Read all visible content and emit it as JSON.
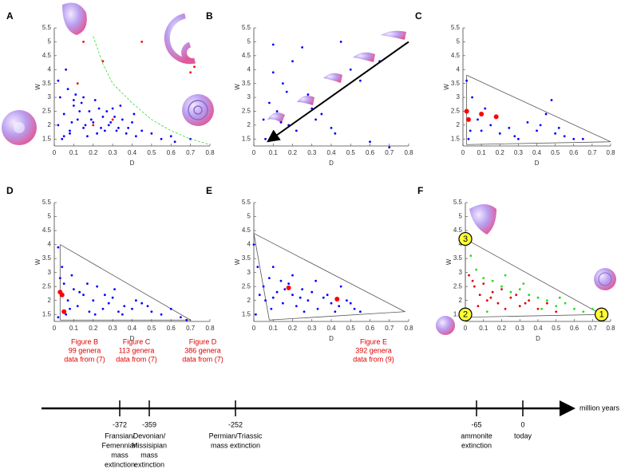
{
  "chart_data": [
    {
      "type": "scatter",
      "title": "A",
      "xlabel": "D",
      "ylabel": "W",
      "xlim": [
        0,
        0.8
      ],
      "ylim": [
        1.25,
        5.5
      ],
      "xticks": [
        0,
        0.1,
        0.2,
        0.3,
        0.4,
        0.5,
        0.6,
        0.7,
        0.8
      ],
      "yticks": [
        1.5,
        2,
        2.5,
        3,
        3.5,
        4,
        4.5,
        5,
        5.5
      ],
      "series": [
        {
          "mode": "markers",
          "color": "#0000ff",
          "x": [
            0.02,
            0.05,
            0.08,
            0.1,
            0.12,
            0.15,
            0.18,
            0.2,
            0.22,
            0.25,
            0.28,
            0.3,
            0.32,
            0.35,
            0.38,
            0.4,
            0.42,
            0.45,
            0.5,
            0.55,
            0.6,
            0.03,
            0.07,
            0.1,
            0.14,
            0.17,
            0.21,
            0.24,
            0.27,
            0.31,
            0.34,
            0.37,
            0.41,
            0.05,
            0.09,
            0.13,
            0.16,
            0.19,
            0.23,
            0.26,
            0.29,
            0.33,
            0.02,
            0.06,
            0.11,
            0.04,
            0.08,
            0.62,
            0.7,
            0.15
          ],
          "values": [
            2.0,
            2.4,
            1.8,
            2.7,
            2.2,
            1.9,
            2.5,
            2.1,
            1.7,
            2.3,
            2.0,
            2.6,
            1.8,
            2.2,
            1.9,
            2.1,
            1.6,
            1.8,
            1.7,
            1.5,
            1.6,
            3.0,
            3.3,
            2.9,
            2.8,
            1.6,
            2.9,
            1.9,
            2.5,
            2.3,
            2.7,
            1.7,
            2.4,
            1.6,
            2.1,
            2.5,
            2.0,
            2.2,
            2.6,
            1.8,
            2.1,
            1.9,
            3.6,
            4.0,
            3.1,
            1.5,
            1.7,
            1.4,
            1.5,
            3.0
          ]
        },
        {
          "mode": "markers",
          "color": "#ff0000",
          "x": [
            0.15,
            0.45,
            0.7,
            0.72,
            0.25,
            0.12,
            0.3,
            0.2
          ],
          "values": [
            5.0,
            5.0,
            3.9,
            4.1,
            4.3,
            3.5,
            2.2,
            2.0
          ]
        },
        {
          "mode": "dashed",
          "color": "#33dd33",
          "x": [
            0.2,
            0.25,
            0.3,
            0.4,
            0.5,
            0.6,
            0.7,
            0.8
          ],
          "values": [
            5.2,
            4.2,
            3.5,
            2.8,
            2.2,
            1.8,
            1.5,
            1.3
          ]
        }
      ]
    },
    {
      "type": "scatter",
      "title": "B",
      "xlabel": "D",
      "ylabel": "W",
      "xlim": [
        0,
        0.8
      ],
      "ylim": [
        1.25,
        5.5
      ],
      "xticks": [
        0,
        0.1,
        0.2,
        0.3,
        0.4,
        0.5,
        0.6,
        0.7,
        0.8
      ],
      "yticks": [
        1.5,
        2,
        2.5,
        3,
        3.5,
        4,
        4.5,
        5,
        5.5
      ],
      "series": [
        {
          "mode": "markers",
          "color": "#0000ff",
          "x": [
            0.05,
            0.08,
            0.1,
            0.12,
            0.15,
            0.18,
            0.2,
            0.22,
            0.25,
            0.28,
            0.3,
            0.35,
            0.4,
            0.45,
            0.5,
            0.55,
            0.6,
            0.65,
            0.1,
            0.14,
            0.06,
            0.17,
            0.32,
            0.42,
            0.7
          ],
          "values": [
            2.2,
            2.8,
            4.9,
            2.5,
            3.5,
            2.0,
            4.3,
            1.8,
            4.8,
            3.1,
            2.6,
            2.4,
            1.9,
            5.0,
            4.0,
            3.6,
            1.4,
            4.3,
            3.9,
            2.1,
            1.5,
            3.2,
            2.2,
            1.7,
            1.2
          ]
        },
        {
          "mode": "arrow",
          "color": "#000000",
          "x": [
            0.8,
            0.08
          ],
          "values": [
            5.0,
            1.45
          ]
        }
      ]
    },
    {
      "type": "scatter",
      "title": "C",
      "xlabel": "D",
      "ylabel": "W",
      "xlim": [
        0,
        0.8
      ],
      "ylim": [
        1.25,
        5.5
      ],
      "xticks": [
        0,
        0.1,
        0.2,
        0.3,
        0.4,
        0.5,
        0.6,
        0.7,
        0.8
      ],
      "yticks": [
        1.5,
        2,
        2.5,
        3,
        3.5,
        4,
        4.5,
        5,
        5.5
      ],
      "series": [
        {
          "mode": "line",
          "color": "#555555",
          "x": [
            0.02,
            0.8,
            0.02,
            0.02
          ],
          "values": [
            3.8,
            1.4,
            1.3,
            3.8
          ]
        },
        {
          "mode": "markers",
          "color": "#0000ff",
          "x": [
            0.02,
            0.03,
            0.05,
            0.08,
            0.1,
            0.15,
            0.2,
            0.25,
            0.3,
            0.35,
            0.4,
            0.45,
            0.5,
            0.55,
            0.6,
            0.65,
            0.42,
            0.48,
            0.52,
            0.04,
            0.12,
            0.28
          ],
          "values": [
            3.6,
            1.5,
            3.0,
            2.2,
            1.8,
            2.0,
            1.7,
            1.9,
            1.5,
            2.1,
            1.8,
            2.4,
            1.7,
            1.6,
            1.5,
            1.5,
            2.0,
            2.9,
            1.9,
            1.8,
            2.6,
            1.6
          ]
        },
        {
          "mode": "markers",
          "color": "#ff0000",
          "marker_size": 3,
          "x": [
            0.02,
            0.03,
            0.1,
            0.18
          ],
          "values": [
            2.5,
            2.2,
            2.4,
            2.3
          ]
        }
      ]
    },
    {
      "type": "scatter",
      "title": "D",
      "xlabel": "D",
      "ylabel": "W",
      "xlim": [
        0,
        0.8
      ],
      "ylim": [
        1.25,
        5.5
      ],
      "xticks": [
        0,
        0.1,
        0.2,
        0.3,
        0.4,
        0.5,
        0.6,
        0.7,
        0.8
      ],
      "yticks": [
        1.5,
        2,
        2.5,
        3,
        3.5,
        4,
        4.5,
        5,
        5.5
      ],
      "series": [
        {
          "mode": "line",
          "color": "#555555",
          "x": [
            0.03,
            0.7,
            0.03,
            0.03
          ],
          "values": [
            4.0,
            1.3,
            1.3,
            4.0
          ]
        },
        {
          "mode": "markers",
          "color": "#0000ff",
          "x": [
            0.02,
            0.04,
            0.05,
            0.07,
            0.1,
            0.12,
            0.15,
            0.18,
            0.2,
            0.22,
            0.25,
            0.28,
            0.3,
            0.33,
            0.36,
            0.4,
            0.45,
            0.5,
            0.55,
            0.6,
            0.65,
            0.68,
            0.03,
            0.06,
            0.09,
            0.13,
            0.17,
            0.21,
            0.26,
            0.31,
            0.35,
            0.42,
            0.48,
            0.02,
            0.08
          ],
          "values": [
            3.9,
            3.2,
            2.6,
            2.0,
            2.4,
            1.8,
            2.2,
            1.6,
            2.0,
            2.5,
            1.7,
            1.9,
            2.1,
            1.6,
            1.8,
            1.7,
            1.9,
            1.6,
            1.5,
            1.7,
            1.4,
            1.3,
            2.8,
            1.5,
            2.9,
            2.3,
            2.6,
            1.5,
            2.2,
            2.4,
            1.5,
            2.0,
            1.8,
            1.4,
            1.7
          ]
        },
        {
          "mode": "markers",
          "color": "#ff0000",
          "marker_size": 3,
          "x": [
            0.03,
            0.04,
            0.05
          ],
          "values": [
            2.3,
            2.2,
            1.6
          ]
        }
      ]
    },
    {
      "type": "scatter",
      "title": "E",
      "xlabel": "D",
      "ylabel": "W",
      "xlim": [
        0,
        0.8
      ],
      "ylim": [
        1.25,
        5.5
      ],
      "xticks": [
        0,
        0.1,
        0.2,
        0.3,
        0.4,
        0.5,
        0.6,
        0.7,
        0.8
      ],
      "yticks": [
        1.5,
        2,
        2.5,
        3,
        3.5,
        4,
        4.5,
        5,
        5.5
      ],
      "series": [
        {
          "mode": "line",
          "color": "#555555",
          "x": [
            0.0,
            0.78,
            0.08,
            0.0
          ],
          "values": [
            4.4,
            1.6,
            1.3,
            4.4
          ]
        },
        {
          "mode": "markers",
          "color": "#0000ff",
          "x": [
            0.0,
            0.02,
            0.05,
            0.08,
            0.1,
            0.12,
            0.15,
            0.18,
            0.2,
            0.22,
            0.25,
            0.28,
            0.3,
            0.33,
            0.36,
            0.4,
            0.44,
            0.48,
            0.52,
            0.55,
            0.01,
            0.06,
            0.1,
            0.14,
            0.2,
            0.26,
            0.32,
            0.38,
            0.45,
            0.5,
            0.03,
            0.09,
            0.16,
            0.24,
            0.42
          ],
          "values": [
            4.0,
            3.2,
            2.5,
            2.8,
            2.1,
            2.3,
            1.9,
            2.6,
            2.2,
            1.8,
            2.4,
            2.0,
            2.3,
            1.7,
            2.1,
            1.9,
            1.8,
            2.0,
            1.7,
            1.6,
            1.5,
            2.0,
            3.2,
            2.7,
            2.9,
            1.6,
            2.7,
            2.2,
            2.5,
            1.9,
            2.2,
            1.7,
            2.4,
            2.1,
            1.6
          ]
        },
        {
          "mode": "markers",
          "color": "#ff0000",
          "marker_size": 3,
          "x": [
            0.18,
            0.43
          ],
          "values": [
            2.45,
            2.05
          ]
        }
      ]
    },
    {
      "type": "scatter",
      "title": "F",
      "xlabel": "D",
      "ylabel": "W",
      "xlim": [
        0,
        0.8
      ],
      "ylim": [
        1.25,
        5.5
      ],
      "xticks": [
        0,
        0.1,
        0.2,
        0.3,
        0.4,
        0.5,
        0.6,
        0.7,
        0.8
      ],
      "yticks": [
        1.5,
        2,
        2.5,
        3,
        3.5,
        4,
        4.5,
        5,
        5.5
      ],
      "series": [
        {
          "mode": "line",
          "color": "#555555",
          "x": [
            0.0,
            0.75,
            0.0,
            0.0
          ],
          "values": [
            4.2,
            1.5,
            1.4,
            4.2
          ]
        },
        {
          "mode": "markers",
          "color": "#dd0000",
          "x": [
            0.02,
            0.05,
            0.08,
            0.1,
            0.12,
            0.15,
            0.18,
            0.2,
            0.25,
            0.3,
            0.35,
            0.4,
            0.45,
            0.5,
            0.04,
            0.07,
            0.14,
            0.22,
            0.28,
            0.33
          ],
          "values": [
            2.9,
            2.5,
            2.2,
            2.6,
            2.0,
            2.3,
            1.9,
            2.4,
            2.1,
            1.8,
            2.0,
            1.7,
            1.9,
            1.6,
            2.7,
            1.8,
            2.1,
            1.7,
            2.2,
            1.9
          ]
        },
        {
          "mode": "markers",
          "color": "#22dd22",
          "x": [
            0.03,
            0.06,
            0.1,
            0.15,
            0.2,
            0.25,
            0.3,
            0.35,
            0.4,
            0.45,
            0.5,
            0.55,
            0.6,
            0.65,
            0.7,
            0.12,
            0.22,
            0.32,
            0.42,
            0.52
          ],
          "values": [
            3.6,
            3.1,
            2.8,
            2.7,
            2.5,
            2.3,
            2.4,
            2.2,
            2.1,
            2.0,
            1.8,
            1.9,
            1.7,
            1.6,
            1.7,
            1.6,
            2.9,
            2.6,
            1.7,
            2.1
          ]
        }
      ],
      "annotations": [
        {
          "text": "3",
          "x": 0,
          "y": 4.2
        },
        {
          "text": "2",
          "x": 0,
          "y": 1.5
        },
        {
          "text": "1",
          "x": 0.75,
          "y": 1.5
        }
      ]
    }
  ],
  "timeline": {
    "unit_label": "million years",
    "events": [
      {
        "value": -372,
        "lines": [
          "Fransian/",
          "Femennian",
          "mass",
          "extinction"
        ]
      },
      {
        "value": -359,
        "lines": [
          "Devonian/",
          "Missisipian",
          "mass",
          "extinction"
        ]
      },
      {
        "value": -252,
        "lines": [
          "Permian/Triassic",
          "mass extinction"
        ]
      },
      {
        "value": -65,
        "lines": [
          "ammonite",
          "extinction"
        ]
      },
      {
        "value": 0,
        "lines": [
          "today"
        ]
      }
    ],
    "figures": [
      [
        "Figure B",
        "99 genera",
        "data from (7)"
      ],
      [
        "Figure C",
        "113 genera",
        "data from (7)"
      ],
      [
        "Figure D",
        "386 genera",
        "data from (7)"
      ],
      [
        "Figure E",
        "392 genera",
        "data from (9)"
      ]
    ]
  }
}
